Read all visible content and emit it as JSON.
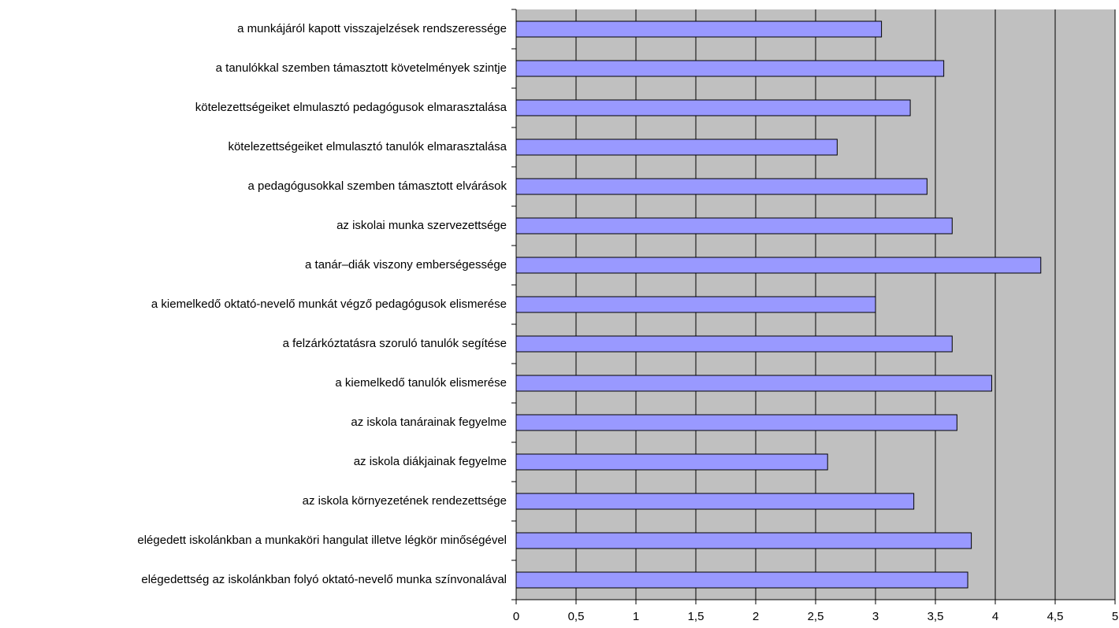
{
  "chart_data": {
    "type": "bar",
    "orientation": "horizontal",
    "categories": [
      "a munkájáról kapott visszajelzések rendszeressége",
      "a tanulókkal szemben támasztott követelmények szintje",
      "kötelezettségeiket elmulasztó pedagógusok elmarasztalása",
      "kötelezettségeiket elmulasztó tanulók elmarasztalása",
      "a pedagógusokkal szemben támasztott elvárások",
      "az iskolai munka szervezettsége",
      "a tanár–diák viszony emberségessége",
      "a kiemelkedő oktató-nevelő munkát végző pedagógusok elismerése",
      "a felzárkóztatásra szoruló tanulók segítése",
      "a kiemelkedő tanulók elismerése",
      "az iskola tanárainak fegyelme",
      "az iskola diákjainak fegyelme",
      "az iskola környezetének rendezettsége",
      "elégedett iskolánkban a munkaköri hangulat illetve légkör minőségével",
      "elégedettség az iskolánkban folyó oktató-nevelő munka színvonalával"
    ],
    "values": [
      3.05,
      3.57,
      3.29,
      2.68,
      3.43,
      3.64,
      4.38,
      3.0,
      3.64,
      3.97,
      3.68,
      2.6,
      3.32,
      3.8,
      3.77
    ],
    "color": "#9999ff",
    "plot_background": "#c0c0c0",
    "xlim": [
      0,
      5
    ],
    "xticks": [
      0,
      {
        "value": 0.5,
        "label": "0,5"
      },
      1,
      {
        "value": 1.5,
        "label": "1,5"
      },
      2,
      {
        "value": 2.5,
        "label": "2,5"
      },
      3,
      {
        "value": 3.5,
        "label": "3,5"
      },
      4,
      {
        "value": 4.5,
        "label": "4,5"
      },
      5
    ],
    "grid": true
  }
}
